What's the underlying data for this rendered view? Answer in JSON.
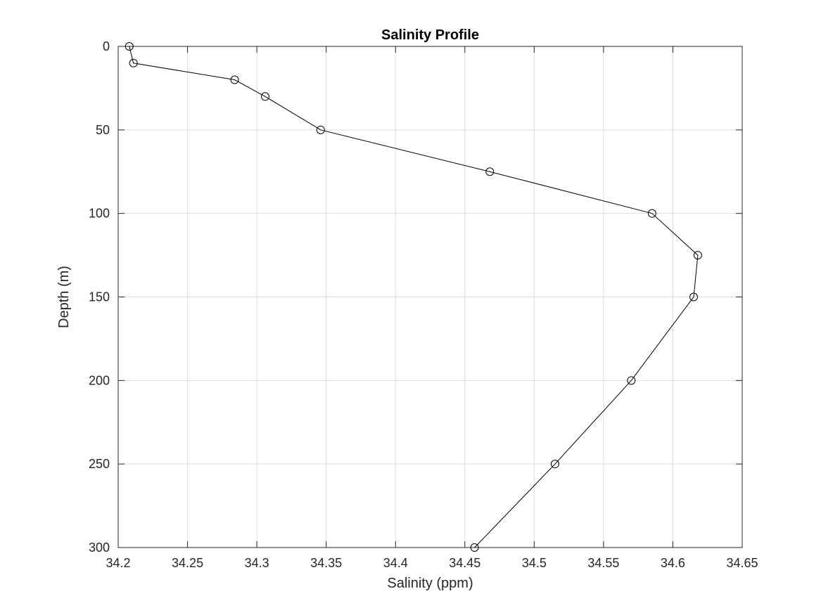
{
  "chart_data": {
    "type": "line",
    "title": "Salinity Profile",
    "xlabel": "Salinity (ppm)",
    "ylabel": "Depth (m)",
    "xlim": [
      34.2,
      34.65
    ],
    "ylim": [
      0,
      300
    ],
    "y_reversed": true,
    "grid": true,
    "xticks": [
      "34.2",
      "34.25",
      "34.3",
      "34.35",
      "34.4",
      "34.45",
      "34.5",
      "34.55",
      "34.6",
      "34.65"
    ],
    "xtick_values": [
      34.2,
      34.25,
      34.3,
      34.35,
      34.4,
      34.45,
      34.5,
      34.55,
      34.6,
      34.65
    ],
    "yticks": [
      "0",
      "50",
      "100",
      "150",
      "200",
      "250",
      "300"
    ],
    "ytick_values": [
      0,
      50,
      100,
      150,
      200,
      250,
      300
    ],
    "series": [
      {
        "marker": "circle",
        "color": "#000000",
        "points": [
          {
            "salinity": 34.208,
            "depth": 0
          },
          {
            "salinity": 34.211,
            "depth": 10
          },
          {
            "salinity": 34.284,
            "depth": 20
          },
          {
            "salinity": 34.306,
            "depth": 30
          },
          {
            "salinity": 34.346,
            "depth": 50
          },
          {
            "salinity": 34.468,
            "depth": 75
          },
          {
            "salinity": 34.585,
            "depth": 100
          },
          {
            "salinity": 34.618,
            "depth": 125
          },
          {
            "salinity": 34.615,
            "depth": 150
          },
          {
            "salinity": 34.57,
            "depth": 200
          },
          {
            "salinity": 34.515,
            "depth": 250
          },
          {
            "salinity": 34.457,
            "depth": 300
          }
        ]
      }
    ]
  }
}
